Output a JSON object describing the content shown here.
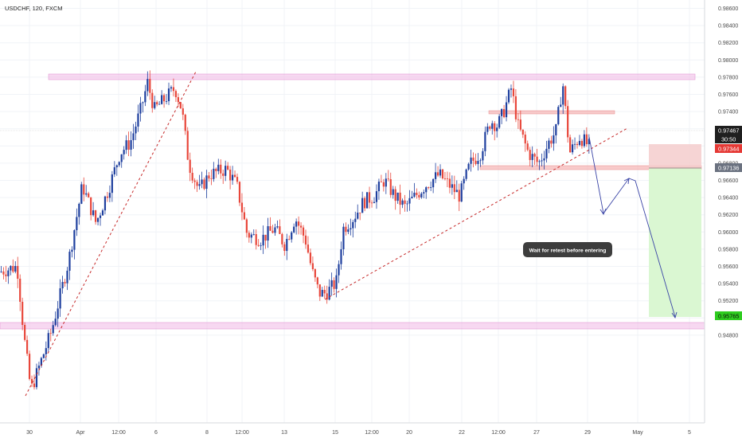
{
  "header": {
    "symbol_title": "USDCHF, 120, FXCM"
  },
  "colors": {
    "bull": "#1e3f9e",
    "bear": "#e8473b",
    "zone_pink": "#f0b8e6",
    "trend_red": "#c62828",
    "arrow_blue": "#3a44a6",
    "stop_zone": "#f5cccc",
    "target_zone": "#d8f7d0",
    "grid": "#f0f3f7",
    "axis_text": "#4a4a4a"
  },
  "chart_data": {
    "type": "candlestick",
    "title": "USDCHF, 120, FXCM",
    "ylim": [
      0.948,
      0.9865
    ],
    "y_ticks": [
      "0.98600",
      "0.98400",
      "0.98200",
      "0.98000",
      "0.97800",
      "0.97600",
      "0.97400",
      "0.97200",
      "0.97000",
      "0.96800",
      "0.96600",
      "0.96400",
      "0.96200",
      "0.96000",
      "0.95800",
      "0.95600",
      "0.95400",
      "0.95200",
      "0.95000",
      "0.94800"
    ],
    "x_ticks": [
      "30",
      "Apr",
      "12:00",
      "6",
      "8",
      "12:00",
      "13",
      "15",
      "12:00",
      "20",
      "22",
      "12:00",
      "27",
      "29",
      "May",
      "5"
    ],
    "price_path": [
      {
        "t": 0,
        "p": 0.962
      },
      {
        "t": 0.025,
        "p": 0.9625
      },
      {
        "t": 0.035,
        "p": 0.956
      },
      {
        "t": 0.045,
        "p": 0.951
      },
      {
        "t": 0.075,
        "p": 0.9565
      },
      {
        "t": 0.1,
        "p": 0.963
      },
      {
        "t": 0.12,
        "p": 0.97
      },
      {
        "t": 0.14,
        "p": 0.9665
      },
      {
        "t": 0.16,
        "p": 0.97
      },
      {
        "t": 0.175,
        "p": 0.973
      },
      {
        "t": 0.19,
        "p": 0.974
      },
      {
        "t": 0.205,
        "p": 0.977
      },
      {
        "t": 0.215,
        "p": 0.9795
      },
      {
        "t": 0.225,
        "p": 0.977
      },
      {
        "t": 0.24,
        "p": 0.978
      },
      {
        "t": 0.255,
        "p": 0.979
      },
      {
        "t": 0.265,
        "p": 0.977
      },
      {
        "t": 0.275,
        "p": 0.972
      },
      {
        "t": 0.29,
        "p": 0.9695
      },
      {
        "t": 0.305,
        "p": 0.971
      },
      {
        "t": 0.33,
        "p": 0.9715
      },
      {
        "t": 0.345,
        "p": 0.97
      },
      {
        "t": 0.36,
        "p": 0.9655
      },
      {
        "t": 0.38,
        "p": 0.965
      },
      {
        "t": 0.4,
        "p": 0.966
      },
      {
        "t": 0.415,
        "p": 0.9645
      },
      {
        "t": 0.43,
        "p": 0.967
      },
      {
        "t": 0.445,
        "p": 0.965
      },
      {
        "t": 0.455,
        "p": 0.962
      },
      {
        "t": 0.465,
        "p": 0.96
      },
      {
        "t": 0.475,
        "p": 0.96
      },
      {
        "t": 0.49,
        "p": 0.961
      },
      {
        "t": 0.5,
        "p": 0.966
      },
      {
        "t": 0.515,
        "p": 0.967
      },
      {
        "t": 0.53,
        "p": 0.9685
      },
      {
        "t": 0.545,
        "p": 0.969
      },
      {
        "t": 0.56,
        "p": 0.9705
      },
      {
        "t": 0.575,
        "p": 0.969
      },
      {
        "t": 0.59,
        "p": 0.968
      },
      {
        "t": 0.605,
        "p": 0.969
      },
      {
        "t": 0.62,
        "p": 0.97
      },
      {
        "t": 0.64,
        "p": 0.971
      },
      {
        "t": 0.655,
        "p": 0.97
      },
      {
        "t": 0.67,
        "p": 0.969
      },
      {
        "t": 0.685,
        "p": 0.972
      },
      {
        "t": 0.7,
        "p": 0.973
      },
      {
        "t": 0.715,
        "p": 0.976
      },
      {
        "t": 0.725,
        "p": 0.9755
      },
      {
        "t": 0.735,
        "p": 0.977
      },
      {
        "t": 0.745,
        "p": 0.979
      },
      {
        "t": 0.755,
        "p": 0.9755
      },
      {
        "t": 0.77,
        "p": 0.973
      },
      {
        "t": 0.785,
        "p": 0.972
      },
      {
        "t": 0.8,
        "p": 0.974
      },
      {
        "t": 0.81,
        "p": 0.975
      },
      {
        "t": 0.82,
        "p": 0.9795
      },
      {
        "t": 0.83,
        "p": 0.973
      },
      {
        "t": 0.845,
        "p": 0.9745
      },
      {
        "t": 0.86,
        "p": 0.9735
      }
    ]
  },
  "axis_tags": {
    "current_price": "0.97467",
    "countdown": "30:50",
    "stop_price": "0.97344",
    "entry_price": "0.97136",
    "target_price": "0.95765"
  },
  "annotation": {
    "note": "Wait for retest before entering"
  }
}
